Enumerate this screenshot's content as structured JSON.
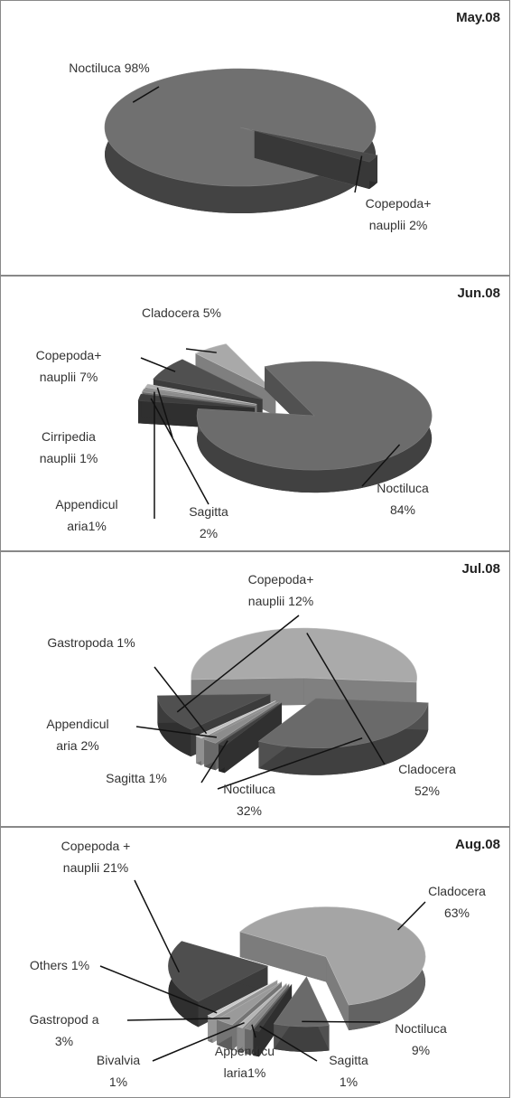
{
  "chart_data": [
    {
      "type": "pie",
      "title": "May.08",
      "categories": [
        "Noctiluca",
        "Copepoda+ nauplii"
      ],
      "values": [
        98,
        2
      ],
      "value_labels": [
        "98%",
        "2%"
      ],
      "colors": [
        "#707070",
        "#4a4a4a"
      ]
    },
    {
      "type": "pie",
      "title": "Jun.08",
      "categories": [
        "Noctiluca",
        "Sagitta",
        "Appendicul aria",
        "Cirripedia nauplii",
        "Copepoda+ nauplii",
        "Cladocera"
      ],
      "values": [
        84,
        2,
        1,
        1,
        7,
        5
      ],
      "value_labels": [
        "84%",
        "2%",
        "1%",
        "1%",
        "7%",
        "5%"
      ],
      "colors": [
        "#6c6c6c",
        "#3e3e3e",
        "#8a8a8a",
        "#b0b0b0",
        "#505050",
        "#a9a9a9"
      ]
    },
    {
      "type": "pie",
      "title": "Jul.08",
      "categories": [
        "Cladocera",
        "Noctiluca",
        "Sagitta",
        "Appendicul aria",
        "Gastropoda",
        "Copepoda+ nauplii"
      ],
      "values": [
        52,
        32,
        1,
        2,
        1,
        12
      ],
      "value_labels": [
        "52%",
        "32%",
        "1%",
        "2%",
        "1%",
        "12%"
      ],
      "colors": [
        "#aaaaaa",
        "#6a6a6a",
        "#404040",
        "#8c8c8c",
        "#c0c0c0",
        "#505050"
      ]
    },
    {
      "type": "pie",
      "title": "Aug.08",
      "categories": [
        "Cladocera",
        "Noctiluca",
        "Sagitta",
        "Appendicu laria",
        "Bivalvia",
        "Gastropod a",
        "Others",
        "Copepoda + nauplii"
      ],
      "values": [
        63,
        9,
        1,
        1,
        1,
        3,
        1,
        21
      ],
      "value_labels": [
        "63%",
        "9%",
        "1%",
        "1%",
        "1%",
        "3%",
        "1%",
        "21%"
      ],
      "colors": [
        "#a5a5a5",
        "#6a6a6a",
        "#3e3e3e",
        "#8a8a8a",
        "#b5b5b5",
        "#9a9a9a",
        "#c8c8c8",
        "#4e4e4e"
      ]
    }
  ]
}
